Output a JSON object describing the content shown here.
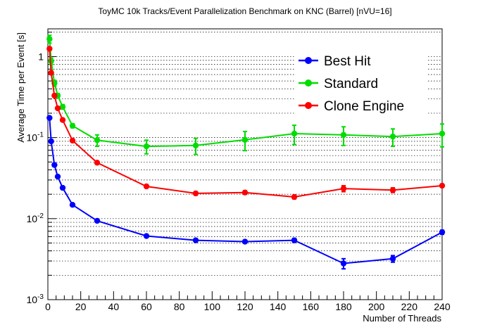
{
  "chart_data": {
    "type": "line",
    "title": "ToyMC 10k Tracks/Event Parallelization Benchmark on KNC (Barrel) [nVU=16]",
    "xlabel": "Number of Threads",
    "ylabel": "Average Time per Event [s]",
    "xlim": [
      0,
      240
    ],
    "ylim": [
      0.001,
      2.2
    ],
    "yscale": "log",
    "grid": "horizontal-dotted",
    "legend_position": "top-right",
    "x_ticks": [
      0,
      20,
      40,
      60,
      80,
      100,
      120,
      140,
      160,
      180,
      200,
      220,
      240
    ],
    "x_tick_labels": [
      "0",
      "20",
      "40",
      "60",
      "80",
      "100",
      "120",
      "140",
      "160",
      "180",
      "200",
      "220",
      "240"
    ],
    "y_decades": [
      {
        "value": 0.001,
        "base": "10",
        "exp": "-3"
      },
      {
        "value": 0.01,
        "base": "10",
        "exp": "-2"
      },
      {
        "value": 0.1,
        "base": "10",
        "exp": "-1"
      },
      {
        "value": 1,
        "base": "1",
        "exp": ""
      }
    ],
    "x": [
      1,
      2,
      4,
      6,
      9,
      15,
      30,
      60,
      90,
      120,
      150,
      180,
      210,
      240
    ],
    "series": [
      {
        "name": "Best Hit",
        "color": "#0000ff",
        "values": [
          0.175,
          0.09,
          0.046,
          0.033,
          0.024,
          0.0148,
          0.0094,
          0.0061,
          0.0054,
          0.0052,
          0.0054,
          0.0028,
          0.0032,
          0.0068
        ],
        "errors": [
          0.006,
          0.003,
          0.002,
          0.001,
          0.001,
          0.0005,
          0.0003,
          0.0002,
          0.0002,
          0.0002,
          0.0003,
          0.0004,
          0.0003,
          0.0004
        ]
      },
      {
        "name": "Standard",
        "color": "#00dd00",
        "values": [
          1.65,
          0.88,
          0.47,
          0.33,
          0.24,
          0.14,
          0.093,
          0.078,
          0.08,
          0.094,
          0.112,
          0.108,
          0.103,
          0.112
        ],
        "errors": [
          0.18,
          0.08,
          0.04,
          0.02,
          0.015,
          0.008,
          0.015,
          0.015,
          0.018,
          0.025,
          0.03,
          0.028,
          0.025,
          0.035
        ]
      },
      {
        "name": "Clone Engine",
        "color": "#ff0000",
        "values": [
          1.25,
          0.63,
          0.33,
          0.23,
          0.165,
          0.092,
          0.049,
          0.025,
          0.0205,
          0.021,
          0.0185,
          0.0235,
          0.0225,
          0.0255
        ],
        "errors": [
          0.05,
          0.02,
          0.01,
          0.008,
          0.005,
          0.003,
          0.002,
          0.001,
          0.001,
          0.001,
          0.001,
          0.002,
          0.0015,
          0.001
        ]
      }
    ]
  }
}
